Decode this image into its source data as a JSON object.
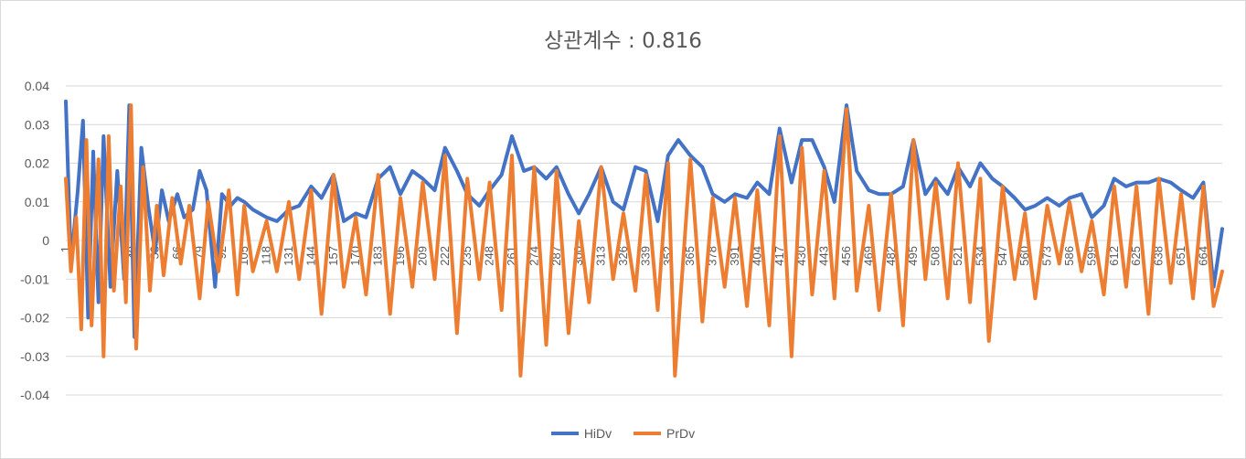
{
  "chart_data": {
    "type": "line",
    "title": "상관계수 : 0.816",
    "ylim": [
      -0.04,
      0.04
    ],
    "yticks": [
      "0.04",
      "0.03",
      "0.02",
      "0.01",
      "0",
      "-0.01",
      "-0.02",
      "-0.03",
      "-0.04"
    ],
    "ytick_values": [
      0.04,
      0.03,
      0.02,
      0.01,
      0,
      -0.01,
      -0.02,
      -0.03,
      -0.04
    ],
    "x_range": [
      1,
      675
    ],
    "xtick_labels": [
      "1",
      "14",
      "27",
      "40",
      "53",
      "66",
      "79",
      "92",
      "105",
      "118",
      "131",
      "144",
      "157",
      "170",
      "183",
      "196",
      "209",
      "222",
      "235",
      "248",
      "261",
      "274",
      "287",
      "300",
      "313",
      "326",
      "339",
      "352",
      "365",
      "378",
      "391",
      "404",
      "417",
      "430",
      "443",
      "456",
      "469",
      "482",
      "495",
      "508",
      "521",
      "534",
      "547",
      "560",
      "573",
      "586",
      "599",
      "612",
      "625",
      "638",
      "651",
      "664"
    ],
    "grid": true,
    "legend": "bottom",
    "series": [
      {
        "name": "HiDv",
        "color": "#4472C4",
        "points": [
          [
            1,
            0.036
          ],
          [
            4,
            -0.006
          ],
          [
            8,
            0.013
          ],
          [
            11,
            0.031
          ],
          [
            14,
            -0.02
          ],
          [
            17,
            0.023
          ],
          [
            20,
            -0.016
          ],
          [
            23,
            0.027
          ],
          [
            27,
            -0.012
          ],
          [
            31,
            0.018
          ],
          [
            35,
            -0.01
          ],
          [
            38,
            0.035
          ],
          [
            41,
            -0.025
          ],
          [
            45,
            0.024
          ],
          [
            49,
            0.009
          ],
          [
            53,
            -0.003
          ],
          [
            57,
            0.013
          ],
          [
            61,
            0.005
          ],
          [
            66,
            0.012
          ],
          [
            70,
            0.006
          ],
          [
            75,
            0.008
          ],
          [
            79,
            0.018
          ],
          [
            83,
            0.013
          ],
          [
            88,
            -0.012
          ],
          [
            92,
            0.012
          ],
          [
            97,
            0.009
          ],
          [
            101,
            0.011
          ],
          [
            105,
            0.01
          ],
          [
            110,
            0.008
          ],
          [
            118,
            0.006
          ],
          [
            124,
            0.005
          ],
          [
            131,
            0.008
          ],
          [
            137,
            0.009
          ],
          [
            144,
            0.014
          ],
          [
            150,
            0.011
          ],
          [
            157,
            0.017
          ],
          [
            163,
            0.005
          ],
          [
            170,
            0.007
          ],
          [
            176,
            0.006
          ],
          [
            183,
            0.016
          ],
          [
            190,
            0.019
          ],
          [
            196,
            0.012
          ],
          [
            203,
            0.018
          ],
          [
            209,
            0.016
          ],
          [
            216,
            0.013
          ],
          [
            222,
            0.024
          ],
          [
            229,
            0.018
          ],
          [
            235,
            0.012
          ],
          [
            242,
            0.009
          ],
          [
            248,
            0.013
          ],
          [
            255,
            0.017
          ],
          [
            261,
            0.027
          ],
          [
            268,
            0.018
          ],
          [
            274,
            0.019
          ],
          [
            281,
            0.016
          ],
          [
            287,
            0.019
          ],
          [
            294,
            0.012
          ],
          [
            300,
            0.007
          ],
          [
            306,
            0.012
          ],
          [
            313,
            0.019
          ],
          [
            320,
            0.01
          ],
          [
            326,
            0.008
          ],
          [
            333,
            0.019
          ],
          [
            339,
            0.018
          ],
          [
            346,
            0.005
          ],
          [
            352,
            0.022
          ],
          [
            358,
            0.026
          ],
          [
            365,
            0.022
          ],
          [
            372,
            0.019
          ],
          [
            378,
            0.012
          ],
          [
            385,
            0.01
          ],
          [
            391,
            0.012
          ],
          [
            398,
            0.011
          ],
          [
            404,
            0.015
          ],
          [
            411,
            0.012
          ],
          [
            417,
            0.029
          ],
          [
            424,
            0.015
          ],
          [
            430,
            0.026
          ],
          [
            436,
            0.026
          ],
          [
            443,
            0.019
          ],
          [
            449,
            0.01
          ],
          [
            456,
            0.035
          ],
          [
            462,
            0.018
          ],
          [
            469,
            0.013
          ],
          [
            475,
            0.012
          ],
          [
            482,
            0.012
          ],
          [
            489,
            0.014
          ],
          [
            495,
            0.026
          ],
          [
            502,
            0.012
          ],
          [
            508,
            0.016
          ],
          [
            515,
            0.012
          ],
          [
            521,
            0.019
          ],
          [
            528,
            0.014
          ],
          [
            534,
            0.02
          ],
          [
            541,
            0.016
          ],
          [
            547,
            0.014
          ],
          [
            554,
            0.011
          ],
          [
            560,
            0.008
          ],
          [
            566,
            0.009
          ],
          [
            573,
            0.011
          ],
          [
            580,
            0.009
          ],
          [
            586,
            0.011
          ],
          [
            593,
            0.012
          ],
          [
            599,
            0.006
          ],
          [
            606,
            0.009
          ],
          [
            612,
            0.016
          ],
          [
            619,
            0.014
          ],
          [
            625,
            0.015
          ],
          [
            632,
            0.015
          ],
          [
            638,
            0.016
          ],
          [
            645,
            0.015
          ],
          [
            651,
            0.013
          ],
          [
            658,
            0.011
          ],
          [
            664,
            0.015
          ],
          [
            670,
            -0.012
          ],
          [
            675,
            0.003
          ]
        ]
      },
      {
        "name": "PrDv",
        "color": "#ED7D31",
        "points": [
          [
            1,
            0.016
          ],
          [
            4,
            -0.008
          ],
          [
            7,
            0.006
          ],
          [
            10,
            -0.023
          ],
          [
            13,
            0.026
          ],
          [
            16,
            -0.022
          ],
          [
            20,
            0.021
          ],
          [
            23,
            -0.03
          ],
          [
            26,
            0.027
          ],
          [
            29,
            -0.013
          ],
          [
            33,
            0.014
          ],
          [
            36,
            -0.016
          ],
          [
            39,
            0.035
          ],
          [
            42,
            -0.028
          ],
          [
            46,
            0.019
          ],
          [
            50,
            -0.013
          ],
          [
            54,
            0.009
          ],
          [
            58,
            -0.009
          ],
          [
            63,
            0.011
          ],
          [
            68,
            -0.006
          ],
          [
            73,
            0.009
          ],
          [
            79,
            -0.015
          ],
          [
            84,
            0.01
          ],
          [
            90,
            -0.008
          ],
          [
            96,
            0.013
          ],
          [
            101,
            -0.014
          ],
          [
            105,
            0.009
          ],
          [
            110,
            -0.008
          ],
          [
            118,
            0.005
          ],
          [
            124,
            -0.008
          ],
          [
            131,
            0.01
          ],
          [
            137,
            -0.01
          ],
          [
            144,
            0.013
          ],
          [
            150,
            -0.019
          ],
          [
            157,
            0.017
          ],
          [
            163,
            -0.012
          ],
          [
            170,
            0.006
          ],
          [
            176,
            -0.014
          ],
          [
            183,
            0.017
          ],
          [
            190,
            -0.019
          ],
          [
            196,
            0.011
          ],
          [
            203,
            -0.012
          ],
          [
            209,
            0.015
          ],
          [
            216,
            -0.01
          ],
          [
            222,
            0.022
          ],
          [
            229,
            -0.024
          ],
          [
            235,
            0.016
          ],
          [
            242,
            -0.01
          ],
          [
            248,
            0.015
          ],
          [
            255,
            -0.018
          ],
          [
            261,
            0.022
          ],
          [
            266,
            -0.035
          ],
          [
            274,
            0.019
          ],
          [
            281,
            -0.027
          ],
          [
            287,
            0.018
          ],
          [
            294,
            -0.024
          ],
          [
            300,
            0.005
          ],
          [
            306,
            -0.016
          ],
          [
            313,
            0.019
          ],
          [
            320,
            -0.01
          ],
          [
            326,
            0.007
          ],
          [
            333,
            -0.013
          ],
          [
            339,
            0.017
          ],
          [
            346,
            -0.018
          ],
          [
            352,
            0.02
          ],
          [
            356,
            -0.035
          ],
          [
            365,
            0.021
          ],
          [
            372,
            -0.021
          ],
          [
            378,
            0.011
          ],
          [
            385,
            -0.012
          ],
          [
            391,
            0.011
          ],
          [
            398,
            -0.017
          ],
          [
            404,
            0.013
          ],
          [
            411,
            -0.022
          ],
          [
            417,
            0.027
          ],
          [
            424,
            -0.03
          ],
          [
            430,
            0.024
          ],
          [
            436,
            -0.014
          ],
          [
            443,
            0.018
          ],
          [
            449,
            -0.015
          ],
          [
            456,
            0.034
          ],
          [
            462,
            -0.013
          ],
          [
            469,
            0.009
          ],
          [
            475,
            -0.018
          ],
          [
            482,
            0.012
          ],
          [
            489,
            -0.022
          ],
          [
            495,
            0.026
          ],
          [
            502,
            -0.01
          ],
          [
            508,
            0.015
          ],
          [
            515,
            -0.015
          ],
          [
            521,
            0.02
          ],
          [
            528,
            -0.016
          ],
          [
            534,
            0.016
          ],
          [
            539,
            -0.026
          ],
          [
            547,
            0.014
          ],
          [
            554,
            -0.01
          ],
          [
            560,
            0.007
          ],
          [
            566,
            -0.015
          ],
          [
            573,
            0.009
          ],
          [
            580,
            -0.006
          ],
          [
            586,
            0.01
          ],
          [
            593,
            -0.008
          ],
          [
            599,
            0.005
          ],
          [
            606,
            -0.014
          ],
          [
            612,
            0.014
          ],
          [
            619,
            -0.012
          ],
          [
            625,
            0.014
          ],
          [
            632,
            -0.019
          ],
          [
            638,
            0.016
          ],
          [
            645,
            -0.011
          ],
          [
            651,
            0.012
          ],
          [
            658,
            -0.015
          ],
          [
            664,
            0.014
          ],
          [
            670,
            -0.017
          ],
          [
            675,
            -0.008
          ]
        ]
      }
    ]
  }
}
